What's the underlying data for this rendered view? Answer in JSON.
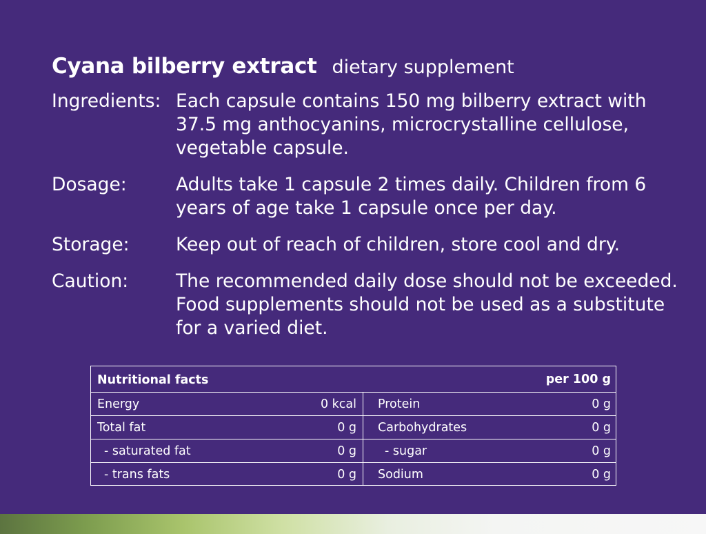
{
  "header": {
    "title": "Cyana bilberry extract",
    "subtitle": "dietary supplement"
  },
  "info": [
    {
      "label": "Ingredients:",
      "text": "Each capsule contains 150 mg bilberry extract with 37.5 mg anthocyanins, microcrystalline cellulose, vegetable capsule."
    },
    {
      "label": "Dosage:",
      "text": "Adults take 1 capsule 2 times daily. Children from 6 years of age take 1 capsule once per day."
    },
    {
      "label": "Storage:",
      "text": "Keep out of reach of children, store cool and dry."
    },
    {
      "label": "Caution:",
      "text": "The recommended daily dose should not be exceeded. Food supplements should not be used as a substitute for a varied diet."
    }
  ],
  "nutrition": {
    "title": "Nutritional facts",
    "unit": "per 100 g",
    "left": [
      {
        "name": "Energy",
        "value": "0 kcal"
      },
      {
        "name": "Total fat",
        "value": "0 g"
      },
      {
        "name": "- saturated fat",
        "value": "0 g"
      },
      {
        "name": "- trans fats",
        "value": "0 g"
      }
    ],
    "right": [
      {
        "name": "Protein",
        "value": "0 g"
      },
      {
        "name": "Carbohydrates",
        "value": "0 g"
      },
      {
        "name": "- sugar",
        "value": "0 g"
      },
      {
        "name": "Sodium",
        "value": "0 g"
      }
    ]
  },
  "colors": {
    "background": "#452a7b",
    "text": "#ffffff"
  }
}
